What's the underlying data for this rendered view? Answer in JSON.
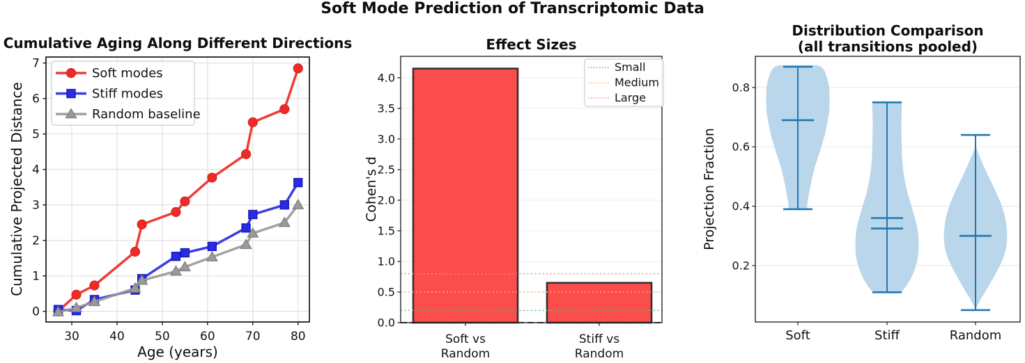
{
  "figure": {
    "title": "Soft Mode Prediction of Transcriptomic Data"
  },
  "chart_data": [
    {
      "id": "cumulative_aging",
      "type": "line",
      "title": "Cumulative Aging Along Different Directions",
      "xlabel": "Age (years)",
      "ylabel": "Cumulative Projected Distance",
      "xlim": [
        24.3,
        82.5
      ],
      "ylim": [
        -0.3,
        7.17
      ],
      "xticks": [
        30,
        40,
        50,
        60,
        70,
        80
      ],
      "yticks": [
        0,
        1,
        2,
        3,
        4,
        5,
        6,
        7
      ],
      "grid": true,
      "legend_position": "upper-left",
      "x": [
        27,
        31,
        35,
        44,
        45.5,
        53,
        55,
        61,
        68.5,
        70,
        77,
        80
      ],
      "series": [
        {
          "name": "Soft modes",
          "marker": "circle",
          "color": "#ee2b24",
          "edge": "#d41f1f",
          "values": [
            0.0,
            0.47,
            0.73,
            1.68,
            2.45,
            2.8,
            3.1,
            3.77,
            4.43,
            5.33,
            5.7,
            6.85
          ]
        },
        {
          "name": "Stiff modes",
          "marker": "square",
          "color": "#2b2be0",
          "edge": "#1515c0",
          "values": [
            0.05,
            0.02,
            0.33,
            0.6,
            0.92,
            1.55,
            1.65,
            1.83,
            2.35,
            2.73,
            3.0,
            3.63
          ]
        },
        {
          "name": "Random baseline",
          "marker": "triangle",
          "color": "#9a9a9a",
          "edge": "#808080",
          "values": [
            -0.02,
            0.1,
            0.27,
            0.65,
            0.87,
            1.13,
            1.25,
            1.53,
            1.88,
            2.2,
            2.5,
            3.0
          ]
        }
      ]
    },
    {
      "id": "effect_sizes",
      "type": "bar",
      "title": "Effect Sizes",
      "ylabel": "Cohen's d",
      "categories": [
        [
          "Soft vs",
          "Random"
        ],
        [
          "Stiff vs",
          "Random"
        ]
      ],
      "values": [
        4.15,
        0.65
      ],
      "bar_color": "#fc4d4d",
      "bar_edge": "#352f2f",
      "ylim": [
        0,
        4.35
      ],
      "yticks": [
        0.0,
        0.5,
        1.0,
        1.5,
        2.0,
        2.5,
        3.0,
        3.5,
        4.0
      ],
      "reference_lines": [
        {
          "label": "Small",
          "value": 0.2,
          "color": "#63b878"
        },
        {
          "label": "Medium",
          "value": 0.5,
          "color": "#ffb360"
        },
        {
          "label": "Large",
          "value": 0.8,
          "color": "#ff8080"
        }
      ],
      "zero_line": {
        "value": 0,
        "style": "dashed",
        "color": "#1a1a1a"
      },
      "legend_position": "upper-right"
    },
    {
      "id": "distribution_comparison",
      "type": "violin",
      "title_lines": [
        "Distribution Comparison",
        "(all transitions pooled)"
      ],
      "ylabel": "Projection Fraction",
      "categories": [
        "Soft",
        "Stiff",
        "Random"
      ],
      "yticks": [
        0.2,
        0.4,
        0.6,
        0.8
      ],
      "ylim": [
        0.01,
        0.905
      ],
      "fill_color": "#bad6ea",
      "line_color": "#2077b4",
      "violins": [
        {
          "name": "Soft",
          "whisker_min": 0.39,
          "whisker_max": 0.87,
          "stat_lines": [
            0.69
          ],
          "profile": [
            [
              0.39,
              0.28
            ],
            [
              0.41,
              0.3
            ],
            [
              0.44,
              0.35
            ],
            [
              0.47,
              0.4
            ],
            [
              0.5,
              0.46
            ],
            [
              0.53,
              0.53
            ],
            [
              0.56,
              0.62
            ],
            [
              0.6,
              0.74
            ],
            [
              0.64,
              0.85
            ],
            [
              0.68,
              0.93
            ],
            [
              0.72,
              0.99
            ],
            [
              0.76,
              1.0
            ],
            [
              0.8,
              0.99
            ],
            [
              0.83,
              0.93
            ],
            [
              0.855,
              0.85
            ],
            [
              0.87,
              0.74
            ],
            [
              0.875,
              0.58
            ]
          ]
        },
        {
          "name": "Stiff",
          "whisker_min": 0.11,
          "whisker_max": 0.75,
          "stat_lines": [
            0.36,
            0.325
          ],
          "profile": [
            [
              0.11,
              0.45
            ],
            [
              0.13,
              0.6
            ],
            [
              0.15,
              0.72
            ],
            [
              0.18,
              0.85
            ],
            [
              0.21,
              0.94
            ],
            [
              0.24,
              0.99
            ],
            [
              0.27,
              1.0
            ],
            [
              0.3,
              0.99
            ],
            [
              0.33,
              0.95
            ],
            [
              0.36,
              0.88
            ],
            [
              0.4,
              0.77
            ],
            [
              0.44,
              0.66
            ],
            [
              0.48,
              0.57
            ],
            [
              0.52,
              0.51
            ],
            [
              0.57,
              0.47
            ],
            [
              0.62,
              0.46
            ],
            [
              0.67,
              0.45
            ],
            [
              0.72,
              0.46
            ],
            [
              0.75,
              0.47
            ]
          ]
        },
        {
          "name": "Random",
          "whisker_min": 0.05,
          "whisker_max": 0.64,
          "stat_lines": [
            0.3
          ],
          "profile": [
            [
              0.055,
              0.02
            ],
            [
              0.07,
              0.08
            ],
            [
              0.09,
              0.18
            ],
            [
              0.11,
              0.3
            ],
            [
              0.14,
              0.46
            ],
            [
              0.17,
              0.62
            ],
            [
              0.2,
              0.77
            ],
            [
              0.23,
              0.89
            ],
            [
              0.26,
              0.97
            ],
            [
              0.29,
              1.0
            ],
            [
              0.32,
              0.99
            ],
            [
              0.35,
              0.955
            ],
            [
              0.38,
              0.89
            ],
            [
              0.41,
              0.8
            ],
            [
              0.44,
              0.68
            ],
            [
              0.47,
              0.55
            ],
            [
              0.5,
              0.41
            ],
            [
              0.53,
              0.28
            ],
            [
              0.56,
              0.16
            ],
            [
              0.58,
              0.08
            ],
            [
              0.6,
              0.02
            ]
          ]
        }
      ]
    }
  ]
}
